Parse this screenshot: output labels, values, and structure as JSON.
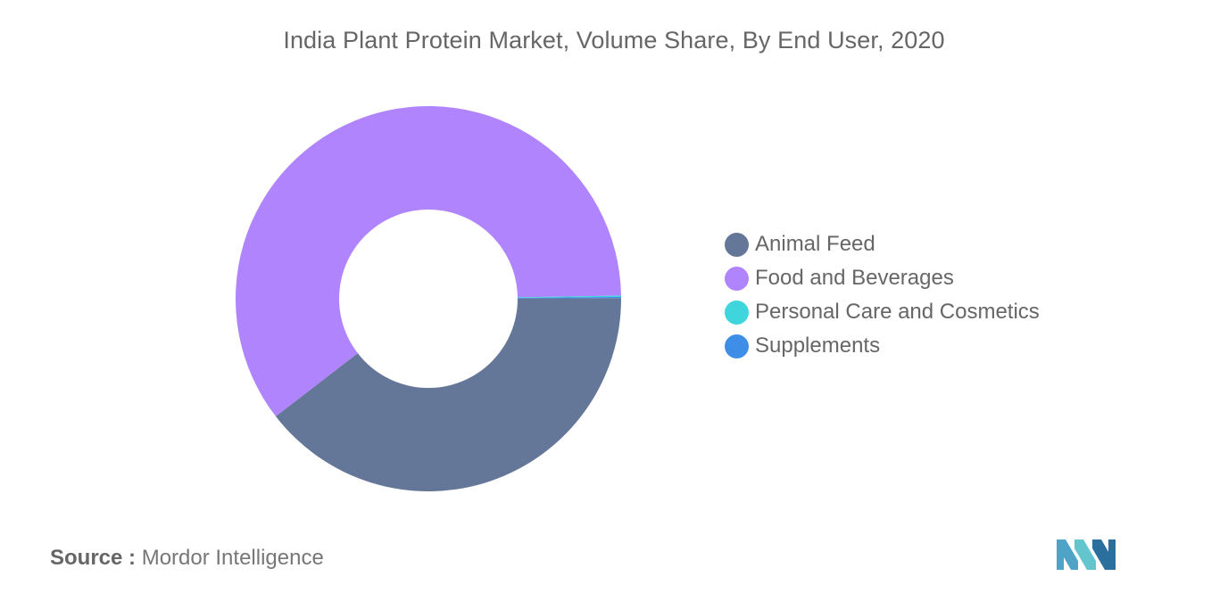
{
  "chart_data": {
    "type": "pie",
    "donut": true,
    "title": "India Plant Protein Market, Volume Share, By End User, 2020",
    "categories": [
      "Animal Feed",
      "Food and Beverages",
      "Personal Care and Cosmetics",
      "Supplements"
    ],
    "values": [
      39.6,
      60.2,
      0.1,
      0.1
    ],
    "unit": "%",
    "colors": [
      "#657798",
      "#b084fd",
      "#3ed5dc",
      "#3e8ee8"
    ],
    "legend_position": "right",
    "start": "right, clockwise"
  },
  "source": {
    "label": "Source :",
    "text": "Mordor Intelligence"
  },
  "logo": {
    "name": "mordor-intelligence-logo",
    "colors": [
      "#4fa3c7",
      "#63c6cf",
      "#2b6f9e"
    ]
  }
}
